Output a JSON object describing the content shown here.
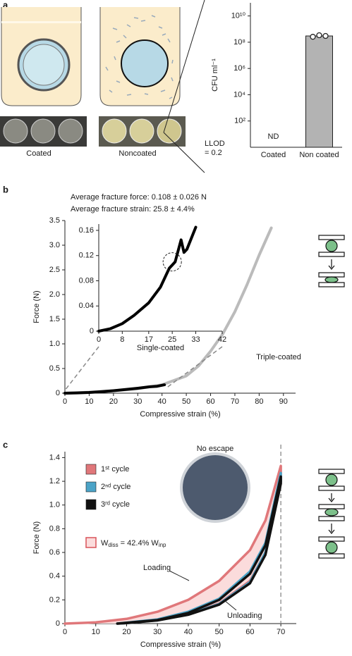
{
  "panel_labels": [
    "a",
    "b",
    "c"
  ],
  "chart_data": [
    {
      "type": "bar",
      "y_label": "CFU ml⁻¹",
      "image_labels": [
        "Coated",
        "Noncoated"
      ],
      "categories": [
        "Coated",
        "Non coated"
      ],
      "values": [
        null,
        300000000
      ],
      "value_labels": [
        "ND",
        null
      ],
      "points": [
        null,
        [
          260000000,
          340000000,
          300000000
        ]
      ],
      "color": "#b3b3b3",
      "log_y": true,
      "ylim": [
        1,
        100000000000
      ],
      "yticks": [
        {
          "value": 100,
          "label": "10²"
        },
        {
          "value": 10000,
          "label": "10⁴"
        },
        {
          "value": 1000000,
          "label": "10⁶"
        },
        {
          "value": 100000000,
          "label": "10⁸"
        },
        {
          "value": 10000000000,
          "label": "10¹⁰"
        }
      ],
      "annotation": [
        "LLOD",
        "= 0.2"
      ]
    },
    {
      "type": "line",
      "stats": [
        "Average fracture force: 0.108 ± 0.026 N",
        "Average fracture strain: 25.8 ± 4.4%"
      ],
      "x_label": "Compressive strain (%)",
      "y_label": "Force (N)",
      "annotations": [
        "Triple-coated"
      ],
      "xlim": [
        0,
        95
      ],
      "ylim": [
        0,
        3.5
      ],
      "xticks": [
        0,
        10,
        20,
        30,
        40,
        50,
        60,
        70,
        80,
        90
      ],
      "yticks": [
        0,
        0.5,
        {
          "value": 1,
          "label": "1.0"
        },
        1.5,
        {
          "value": 2,
          "label": "2.0"
        },
        2.5,
        {
          "value": 3,
          "label": "3.0"
        },
        3.5
      ],
      "series": [
        {
          "color": "#bbbbbb",
          "x": [
            0,
            10,
            20,
            30,
            40,
            50,
            55,
            60,
            65,
            70,
            75,
            80,
            85
          ],
          "values": [
            0,
            0.02,
            0.05,
            0.09,
            0.17,
            0.35,
            0.55,
            0.85,
            1.2,
            1.65,
            2.2,
            2.8,
            3.35
          ]
        },
        {
          "color": "#000000",
          "x": [
            0,
            5,
            10,
            15,
            20,
            25,
            30,
            35,
            38,
            41
          ],
          "values": [
            0,
            0.005,
            0.015,
            0.03,
            0.05,
            0.075,
            0.1,
            0.13,
            0.14,
            0.17
          ]
        }
      ]
    },
    {
      "type": "line",
      "x_label": "Single-coated",
      "xlim": [
        0,
        42
      ],
      "ylim": [
        0,
        0.17
      ],
      "xticks": [
        0,
        8,
        17,
        25,
        33,
        42
      ],
      "yticks": [
        0,
        0.04,
        0.08,
        0.12,
        0.16
      ],
      "series": [
        {
          "color": "#000000",
          "x": [
            0,
            4,
            8,
            12,
            17,
            21,
            24,
            25,
            26,
            28,
            29,
            30,
            33
          ],
          "values": [
            0,
            0.004,
            0.012,
            0.025,
            0.045,
            0.07,
            0.1,
            0.105,
            0.11,
            0.145,
            0.125,
            0.13,
            0.165
          ]
        }
      ]
    },
    {
      "type": "line",
      "x_label": "Compressive strain (%)",
      "y_label": "Force (N)",
      "annotations": [
        "No escape",
        "Loading",
        "Unloading"
      ],
      "energy_label": [
        "W",
        "diss",
        " = 42.4% ",
        "W",
        "inp"
      ],
      "vline": 70,
      "xlim": [
        0,
        75
      ],
      "ylim": [
        0,
        1.45
      ],
      "xticks": [
        0,
        10,
        20,
        30,
        40,
        50,
        60,
        70
      ],
      "yticks": [
        0,
        0.2,
        0.4,
        0.6,
        0.8,
        {
          "value": 1,
          "label": "1.0"
        },
        1.2,
        1.4
      ],
      "series": [
        {
          "name": "1ˢᵗ cycle",
          "color": "#e0777a",
          "x": [
            0,
            10,
            20,
            30,
            40,
            50,
            60,
            65,
            70,
            70,
            65,
            60,
            50,
            40,
            30,
            20,
            17
          ],
          "values": [
            0,
            0.01,
            0.04,
            0.1,
            0.2,
            0.36,
            0.62,
            0.87,
            1.33,
            1.2,
            0.6,
            0.36,
            0.17,
            0.08,
            0.03,
            0.005,
            0
          ]
        },
        {
          "name": "2ⁿᵈ cycle",
          "color": "#4ba3c7",
          "x": [
            17,
            30,
            40,
            50,
            60,
            65,
            70,
            70,
            65,
            60,
            50,
            40,
            30,
            20,
            17
          ],
          "values": [
            0,
            0.035,
            0.1,
            0.21,
            0.44,
            0.68,
            1.27,
            1.2,
            0.6,
            0.35,
            0.165,
            0.078,
            0.028,
            0.004,
            0
          ]
        },
        {
          "name": "3ʳᵈ cycle",
          "color": "#111111",
          "x": [
            17,
            30,
            40,
            50,
            60,
            65,
            70,
            70,
            65,
            60,
            50,
            40,
            30,
            20,
            17
          ],
          "values": [
            0,
            0.03,
            0.09,
            0.2,
            0.42,
            0.66,
            1.24,
            1.18,
            0.58,
            0.34,
            0.16,
            0.075,
            0.027,
            0.004,
            0
          ]
        }
      ]
    }
  ]
}
